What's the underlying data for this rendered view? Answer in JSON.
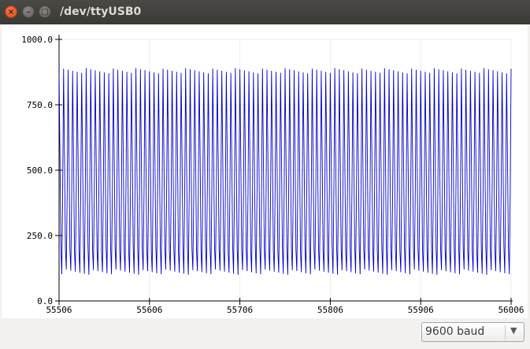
{
  "window": {
    "title": "/dev/ttyUSB0",
    "close_glyph": "×",
    "minimize_glyph": "–",
    "maximize_glyph": "□"
  },
  "baud_select": {
    "value": "9600 baud",
    "arrow_glyph": "▼"
  },
  "colors": {
    "series": "#0000cc",
    "grid": "#eeeeee",
    "axis": "#000000"
  },
  "chart_data": {
    "type": "line",
    "title": "",
    "xlabel": "",
    "ylabel": "",
    "xlim": [
      55506,
      56006
    ],
    "ylim": [
      0,
      1000
    ],
    "x_ticks": [
      55506,
      55606,
      55706,
      55806,
      55906,
      56006
    ],
    "x_tick_labels": [
      "55506",
      "55606",
      "55706",
      "55806",
      "55906",
      "56006"
    ],
    "y_ticks": [
      0,
      250,
      500,
      750,
      1000
    ],
    "y_tick_labels": [
      "0.0",
      "250.0",
      "500.0",
      "750.0",
      "1000.0"
    ],
    "grid": true,
    "legend": "none",
    "series": [
      {
        "description_values": "oscillating signal, roughly 100 cycles across window",
        "period_samples": 5,
        "min": 95,
        "max": 900,
        "values_pattern": [
          880,
          560,
          200,
          110,
          420
        ]
      }
    ]
  }
}
